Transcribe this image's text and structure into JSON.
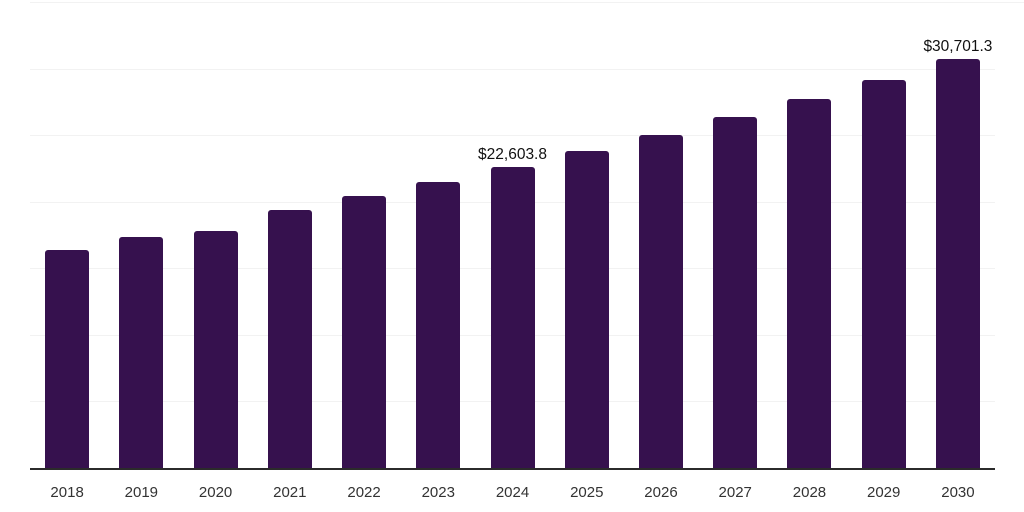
{
  "chart_data": {
    "type": "bar",
    "title": "",
    "xlabel": "",
    "ylabel": "",
    "categories": [
      "2018",
      "2019",
      "2020",
      "2021",
      "2022",
      "2023",
      "2024",
      "2025",
      "2026",
      "2027",
      "2028",
      "2029",
      "2030"
    ],
    "values": [
      16380,
      17380,
      17820,
      19370,
      20430,
      21480,
      22603.8,
      23787,
      25033,
      26343,
      27723,
      29174,
      30701.3
    ],
    "data_labels": {
      "2024": "$22,603.8",
      "2030": "$30,701.3"
    },
    "ylim": [
      0,
      35000
    ],
    "gridline_interval": 5000,
    "grid": true,
    "legend": false,
    "y_tick_labels_visible": false,
    "colors": {
      "bar": "#36114e",
      "axis_line": "#2b2b2b",
      "gridline": "#f2f2f2",
      "tick_label": "#333333",
      "data_label": "#111111",
      "background": "#ffffff"
    }
  }
}
